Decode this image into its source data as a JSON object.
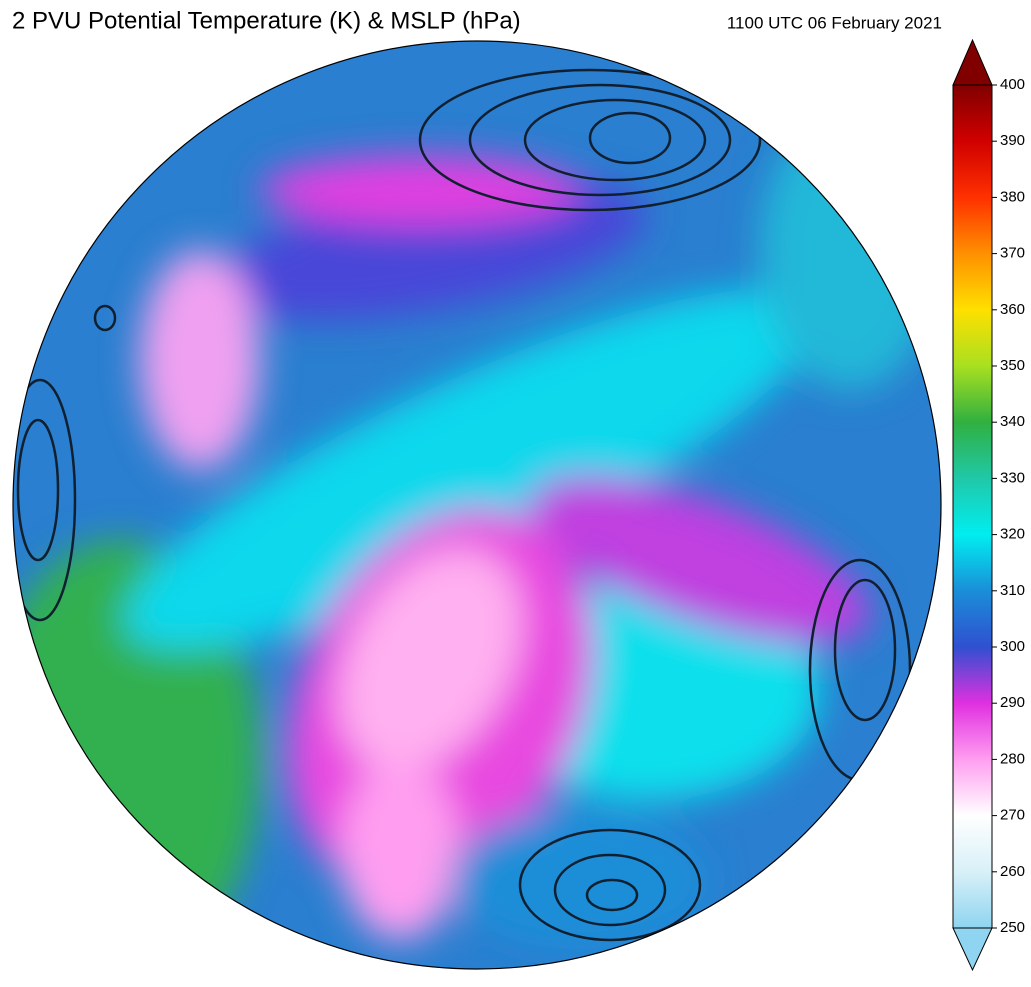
{
  "header": {
    "title": "2 PVU Potential Temperature (K) & MSLP (hPa)",
    "timestamp": "1100 UTC 06 February 2021"
  },
  "colorbar": {
    "range": [
      250,
      400
    ],
    "ticks": [
      250,
      260,
      270,
      280,
      290,
      300,
      310,
      320,
      330,
      340,
      350,
      360,
      370,
      380,
      390,
      400
    ],
    "colors": [
      "#8fd4f0",
      "#d8f0f8",
      "#ffffff",
      "#ff9ef0",
      "#e030e0",
      "#3050d0",
      "#1a8ed8",
      "#00eef0",
      "#20c8a8",
      "#30b040",
      "#a8e020",
      "#ffe000",
      "#ff9000",
      "#ff3000",
      "#d00000",
      "#800000"
    ]
  }
}
